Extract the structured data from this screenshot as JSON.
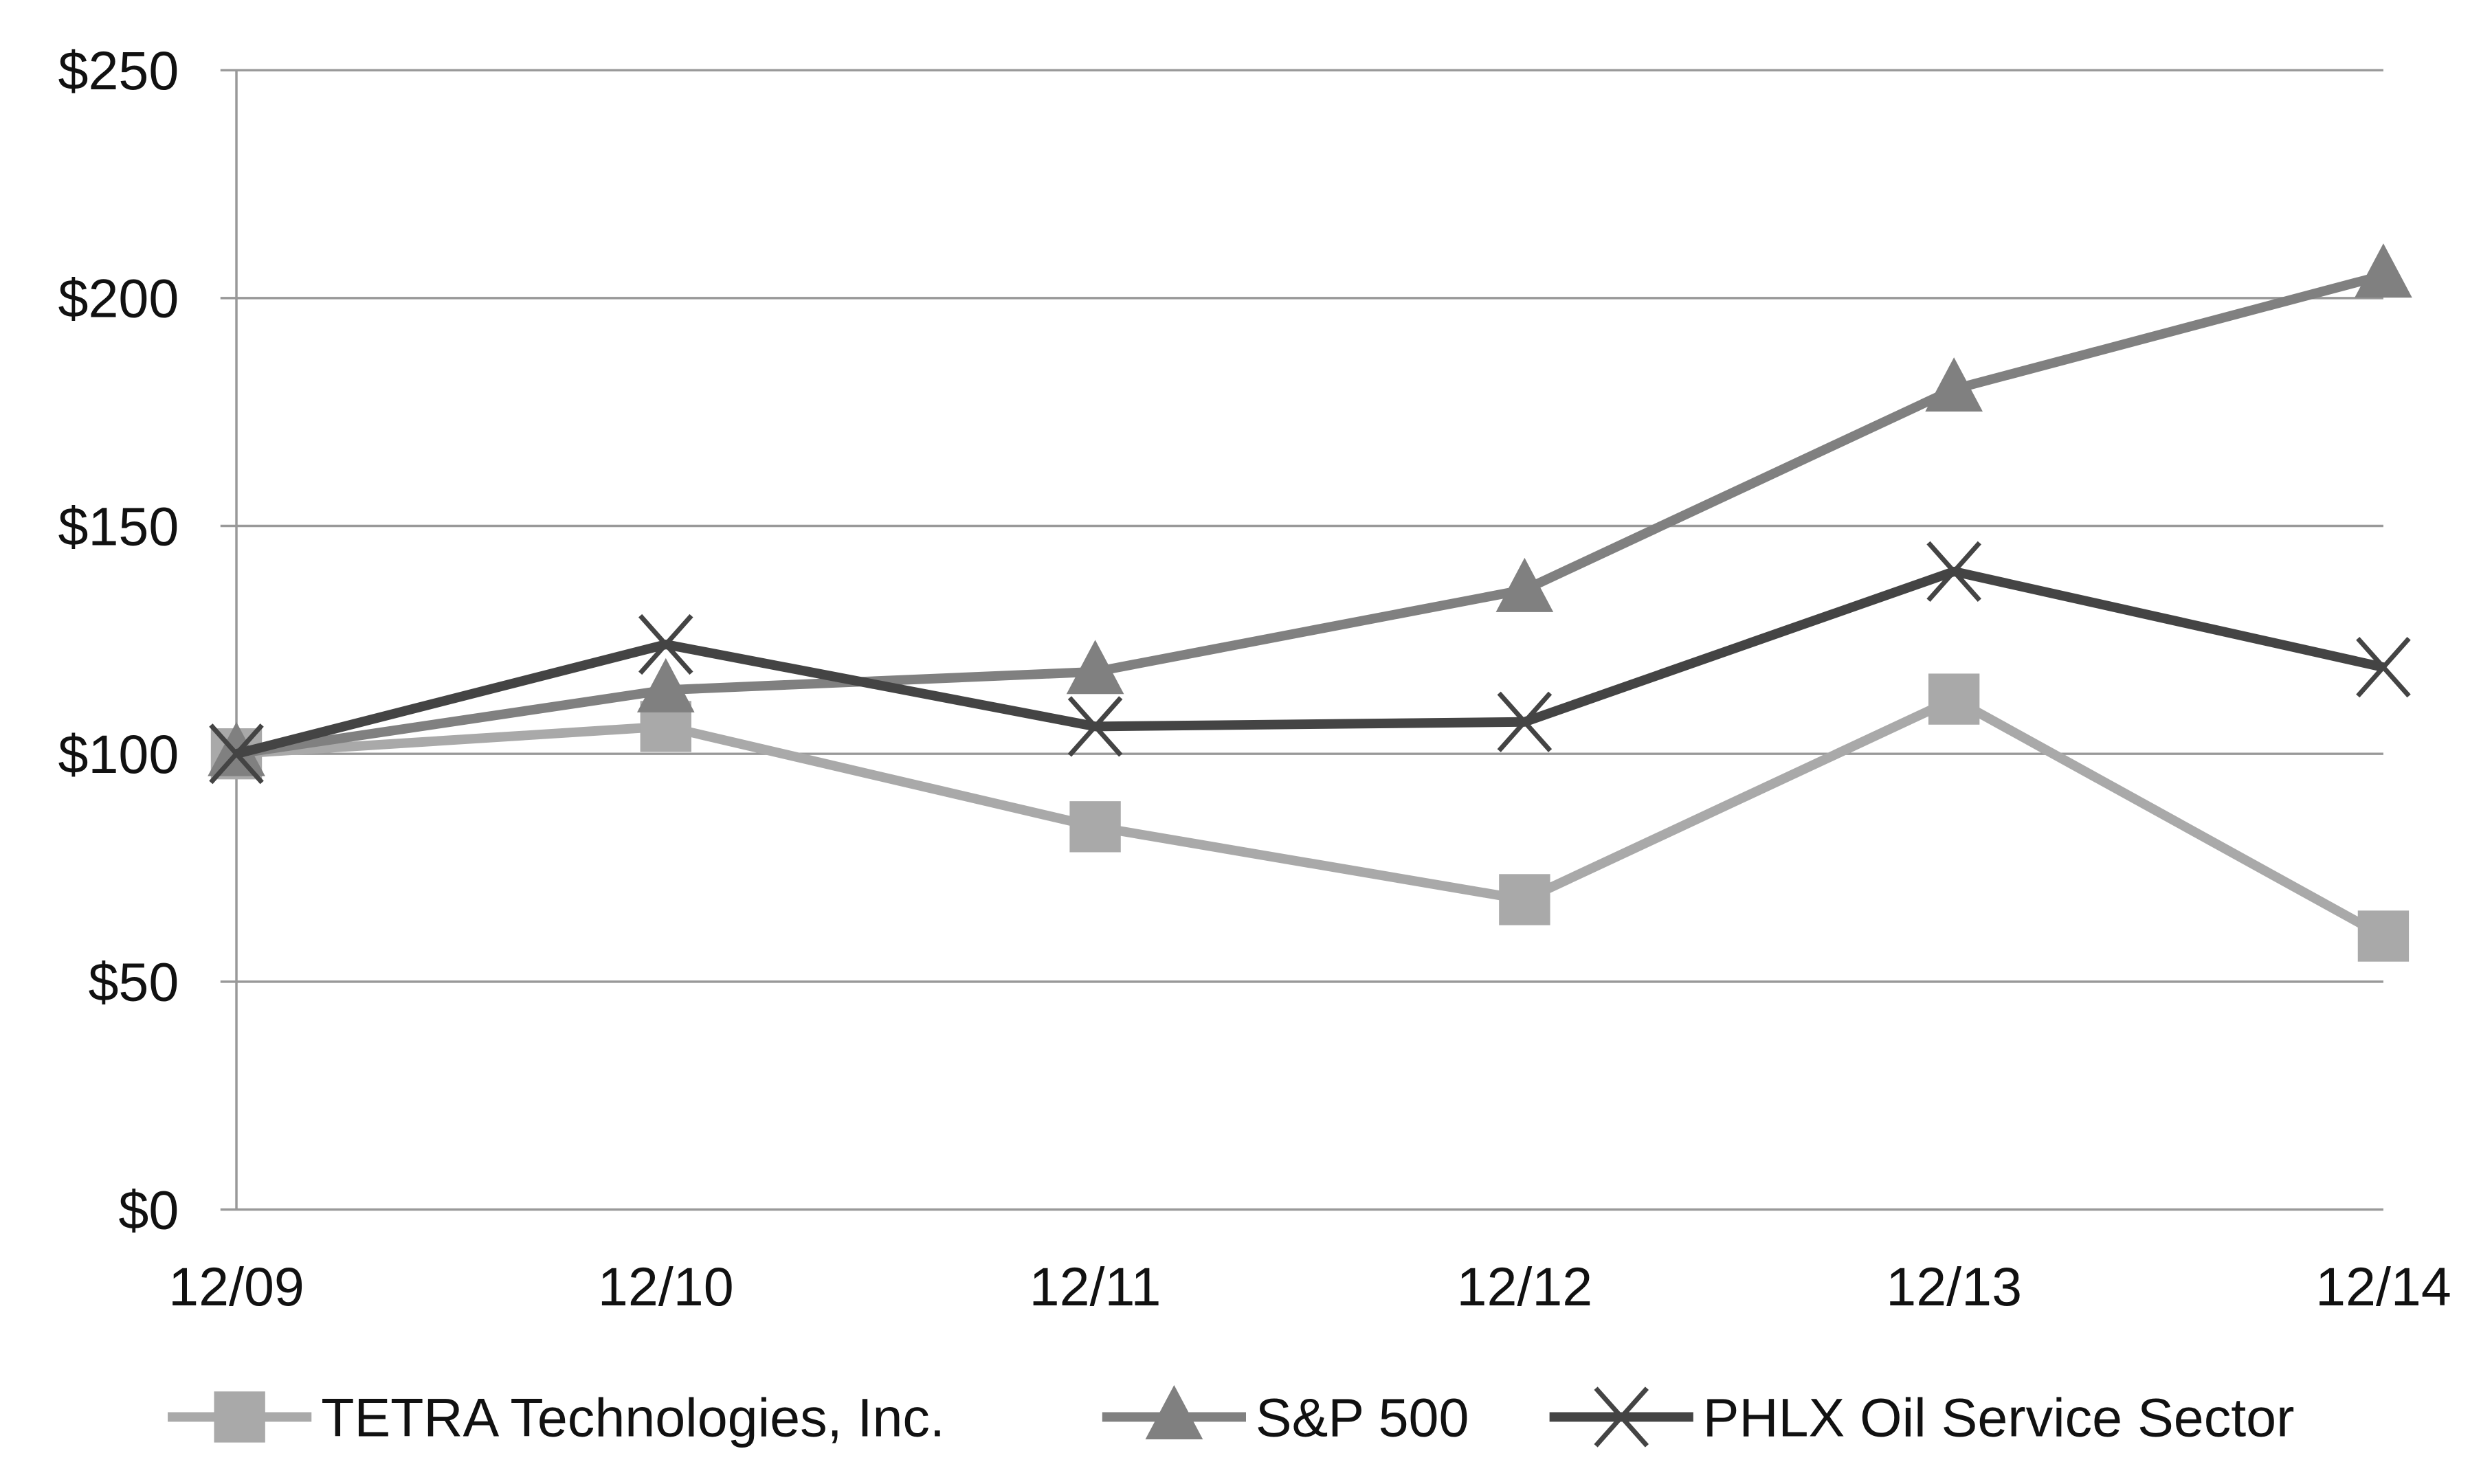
{
  "chart_data": {
    "type": "line",
    "title": "",
    "xlabel": "",
    "ylabel": "",
    "categories": [
      "12/09",
      "12/10",
      "12/11",
      "12/12",
      "12/13",
      "12/14"
    ],
    "ylim": [
      0,
      250
    ],
    "yticks": [
      0,
      50,
      100,
      150,
      200,
      250
    ],
    "ytick_labels": [
      "$0",
      "$50",
      "$100",
      "$150",
      "$200",
      "$250"
    ],
    "grid": true,
    "legend_position": "bottom",
    "series": [
      {
        "name": "TETRA Technologies, Inc.",
        "marker": "square",
        "color": "#a9a9a9",
        "values": [
          100,
          106,
          84,
          68,
          112,
          60
        ]
      },
      {
        "name": "S&P 500",
        "marker": "triangle",
        "color": "#808080",
        "values": [
          100,
          114,
          118,
          136,
          180,
          205
        ]
      },
      {
        "name": "PHLX Oil Service Sector",
        "marker": "x",
        "color": "#444444",
        "values": [
          100,
          124,
          106,
          107,
          140,
          119
        ]
      }
    ]
  }
}
